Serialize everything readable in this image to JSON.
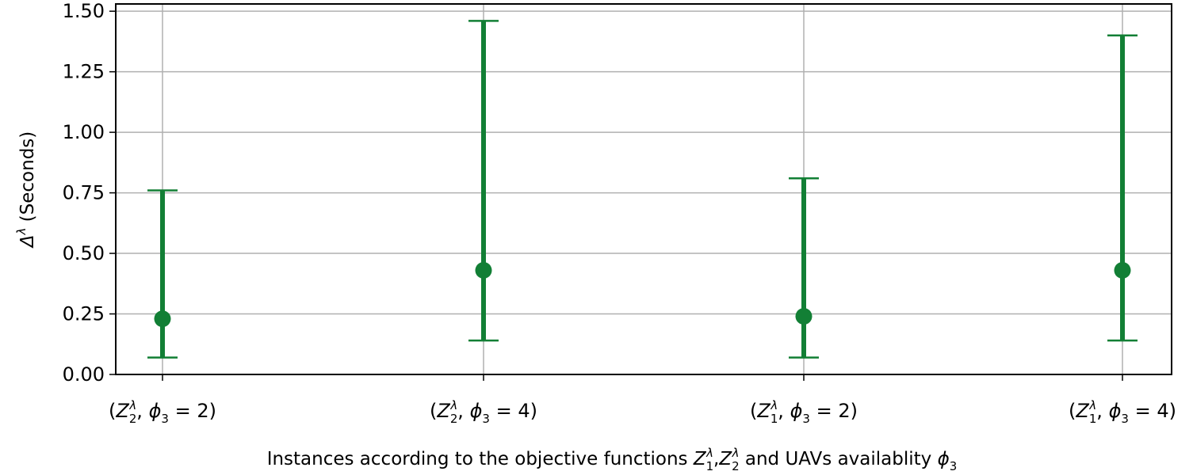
{
  "chart_data": {
    "type": "errorbar",
    "xlabel": {
      "pre": "Instances according to the objective functions ",
      "f1": "Z",
      "f1_sub": "1",
      "f1_sup": "λ",
      "sep": ",",
      "f2": "Z",
      "f2_sub": "2",
      "f2_sup": "λ",
      "mid": " and UAVs availablity ",
      "phi": "ϕ",
      "phi_sub": "3"
    },
    "ylabel": {
      "delta": "Δ",
      "sup": "λ",
      "rest": " (Seconds)"
    },
    "ylim": [
      0.0,
      1.53
    ],
    "yticks": [
      "0.00",
      "0.25",
      "0.50",
      "0.75",
      "1.00",
      "1.25",
      "1.50"
    ],
    "ytick_values": [
      0.0,
      0.25,
      0.5,
      0.75,
      1.0,
      1.25,
      1.5
    ],
    "grid": true,
    "color": "#127f35",
    "categories": [
      {
        "Z": "Z",
        "sub": "2",
        "sup": "λ",
        "phi": "ϕ",
        "phi_sub": "3",
        "eq": " = 2"
      },
      {
        "Z": "Z",
        "sub": "2",
        "sup": "λ",
        "phi": "ϕ",
        "phi_sub": "3",
        "eq": " = 4"
      },
      {
        "Z": "Z",
        "sub": "1",
        "sup": "λ",
        "phi": "ϕ",
        "phi_sub": "3",
        "eq": " = 2"
      },
      {
        "Z": "Z",
        "sub": "1",
        "sup": "λ",
        "phi": "ϕ",
        "phi_sub": "3",
        "eq": " = 4"
      }
    ],
    "points": [
      {
        "mean": 0.23,
        "low": 0.07,
        "high": 0.76
      },
      {
        "mean": 0.43,
        "low": 0.14,
        "high": 1.46
      },
      {
        "mean": 0.24,
        "low": 0.07,
        "high": 0.81
      },
      {
        "mean": 0.43,
        "low": 0.14,
        "high": 1.4
      }
    ]
  }
}
